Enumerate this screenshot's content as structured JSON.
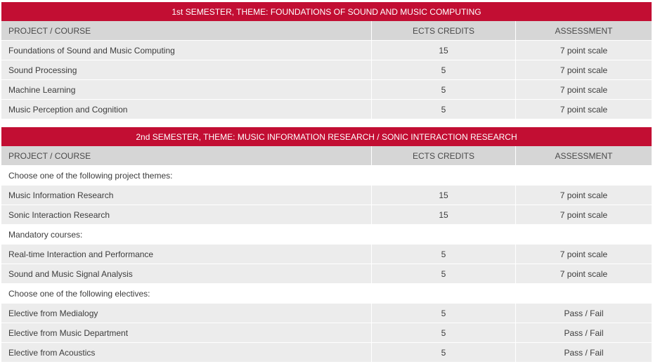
{
  "semester1": {
    "title": "1st SEMESTER, THEME: FOUNDATIONS OF SOUND AND MUSIC COMPUTING",
    "headers": [
      "PROJECT / COURSE",
      "ECTS CREDITS",
      "ASSESSMENT"
    ],
    "rows": [
      {
        "course": "Foundations of Sound and Music Computing",
        "ects": "15",
        "assessment": "7 point scale"
      },
      {
        "course": "Sound Processing",
        "ects": "5",
        "assessment": "7 point scale"
      },
      {
        "course": "Machine Learning",
        "ects": "5",
        "assessment": "7 point scale"
      },
      {
        "course": "Music Perception and Cognition",
        "ects": "5",
        "assessment": "7 point scale"
      }
    ]
  },
  "semester2": {
    "title": "2nd SEMESTER, THEME: MUSIC INFORMATION RESEARCH / SONIC INTERACTION RESEARCH",
    "headers": [
      "PROJECT / COURSE",
      "ECTS CREDITS",
      "ASSESSMENT"
    ],
    "groups": [
      {
        "note": "Choose one of the following project themes:",
        "rows": [
          {
            "course": "Music Information Research",
            "ects": "15",
            "assessment": "7 point scale"
          },
          {
            "course": "Sonic Interaction Research",
            "ects": "15",
            "assessment": "7 point scale"
          }
        ]
      },
      {
        "note": "Mandatory courses:",
        "rows": [
          {
            "course": "Real-time Interaction and Performance",
            "ects": "5",
            "assessment": "7 point scale"
          },
          {
            "course": "Sound and Music Signal Analysis",
            "ects": "5",
            "assessment": "7 point scale"
          }
        ]
      },
      {
        "note": "Choose one of the following electives:",
        "rows": [
          {
            "course": "Elective from Medialogy",
            "ects": "5",
            "assessment": "Pass / Fail"
          },
          {
            "course": "Elective from Music Department",
            "ects": "5",
            "assessment": "Pass / Fail"
          },
          {
            "course": "Elective from Acoustics",
            "ects": "5",
            "assessment": "Pass / Fail"
          }
        ]
      }
    ]
  },
  "colors": {
    "title_bg": "#c20e33",
    "header_bg": "#d6d6d6",
    "row_bg": "#ececec"
  }
}
